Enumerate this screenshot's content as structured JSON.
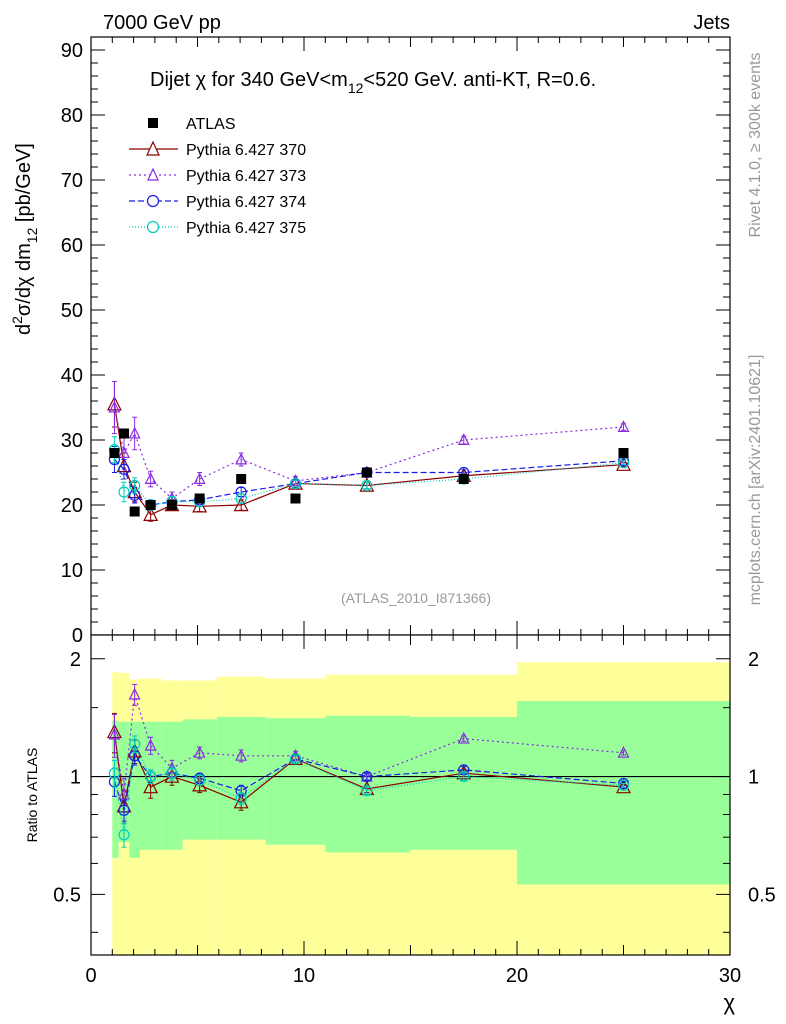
{
  "header": {
    "left_label": "7000 GeV pp",
    "right_label": "Jets",
    "side_label_top": "Rivet 4.1.0, ≥ 300k events",
    "side_label_bottom": "mcplots.cern.ch [arXiv:2401.10621]"
  },
  "colors": {
    "data": "#000000",
    "s370": "#8b0000",
    "s373": "#8a2be2",
    "s374": "#1a1ae6",
    "s375": "#00ccbb",
    "band_outer": "#ffff99",
    "band_inner": "#99ff99"
  },
  "chart_data": [
    {
      "type": "scatter",
      "panel": "main",
      "title": "Dijet χ for 340 GeV<m12<520 GeV.  anti-KT, R=0.6.",
      "title_parts": {
        "before": "Dijet χ for 340 GeV<m",
        "sub": "12",
        "after": "<520 GeV.  anti-KT, R=0.6."
      },
      "ylabel": "d²σ/dχ dm12 [pb/GeV]",
      "ylabel_parts": {
        "a": "d",
        "a_sup": "2",
        "b": "σ/dχ dm",
        "b_sub": "12",
        "c": " [pb/GeV]"
      },
      "watermark": "(ATLAS_2010_I871366)",
      "xlim": [
        0,
        30
      ],
      "ylim": [
        0,
        92
      ],
      "yticks": [
        0,
        10,
        20,
        30,
        40,
        50,
        60,
        70,
        80,
        90
      ],
      "legend_position": "top-left",
      "series": [
        {
          "name": "ATLAS",
          "key": "data",
          "style": "marker",
          "x": [
            1.1,
            1.55,
            2.05,
            2.8,
            3.8,
            5.1,
            7.05,
            9.6,
            12.95,
            17.5,
            25
          ],
          "y": [
            28,
            31,
            19,
            20,
            20,
            21,
            24,
            21,
            25,
            24,
            28
          ]
        },
        {
          "name": "Pythia 6.427 370",
          "key": "s370",
          "marker": "triangle",
          "dash": "",
          "x": [
            1.1,
            1.55,
            2.05,
            2.8,
            3.8,
            5.1,
            7.05,
            9.6,
            12.95,
            17.5,
            25
          ],
          "y": [
            35.5,
            26,
            22,
            18.5,
            20,
            19.8,
            20,
            23.3,
            23,
            24.5,
            26.2
          ],
          "err": [
            3.5,
            2,
            1.5,
            1,
            0.8,
            0.8,
            0.8,
            0.6,
            0.5,
            0.4,
            0.3
          ]
        },
        {
          "name": "Pythia 6.427 373",
          "key": "s373",
          "marker": "triangle",
          "dash": "2,3",
          "x": [
            1.1,
            1.55,
            2.05,
            2.8,
            3.8,
            5.1,
            7.05,
            9.6,
            12.95,
            17.5,
            25
          ],
          "y": [
            35,
            28,
            31,
            24,
            21,
            24,
            27,
            23.7,
            25,
            30,
            32
          ],
          "err": [
            4,
            2.5,
            2.5,
            1.2,
            1,
            1,
            1,
            0.7,
            0.6,
            0.6,
            0.5
          ]
        },
        {
          "name": "Pythia 6.427 374",
          "key": "s374",
          "marker": "circle",
          "dash": "6,3",
          "x": [
            1.1,
            1.55,
            2.05,
            2.8,
            3.8,
            5.1,
            7.05,
            9.6,
            12.95,
            17.5,
            25
          ],
          "y": [
            27,
            25.5,
            21.5,
            20,
            20.5,
            20.8,
            22,
            23.3,
            25,
            25,
            26.8
          ],
          "err": [
            2,
            1.5,
            1.2,
            0.8,
            0.8,
            0.7,
            0.7,
            0.5,
            0.5,
            0.4,
            0.3
          ]
        },
        {
          "name": "Pythia 6.427 375",
          "key": "s375",
          "marker": "circle",
          "dash": "1,2",
          "x": [
            1.1,
            1.55,
            2.05,
            2.8,
            3.8,
            5.1,
            7.05,
            9.6,
            12.95,
            17.5,
            25
          ],
          "y": [
            28.5,
            22,
            23,
            20,
            20.5,
            20.5,
            21,
            23.3,
            23,
            24,
            26.5
          ],
          "err": [
            2,
            1.5,
            1.2,
            0.8,
            0.8,
            0.7,
            0.7,
            0.5,
            0.5,
            0.4,
            0.3
          ]
        }
      ]
    },
    {
      "type": "scatter",
      "panel": "ratio",
      "ylabel": "Ratio to ATLAS",
      "xlabel": "χ",
      "xlim": [
        0,
        30
      ],
      "ylim": [
        0.35,
        2.3
      ],
      "xticks": [
        0,
        10,
        20,
        30
      ],
      "yticks": [
        0.5,
        1,
        2
      ],
      "reference_line": 1,
      "bands": [
        {
          "x0": 1,
          "x1": 1.3,
          "outer": [
            0.35,
            1.85
          ],
          "inner": [
            0.62,
            1.39
          ]
        },
        {
          "x0": 1.3,
          "x1": 1.8,
          "outer": [
            0.35,
            1.84
          ],
          "inner": [
            0.68,
            1.38
          ]
        },
        {
          "x0": 1.8,
          "x1": 2.3,
          "outer": [
            0.35,
            1.77
          ],
          "inner": [
            0.62,
            1.38
          ]
        },
        {
          "x0": 2.3,
          "x1": 3.3,
          "outer": [
            0.35,
            1.78
          ],
          "inner": [
            0.65,
            1.38
          ]
        },
        {
          "x0": 3.3,
          "x1": 4.3,
          "outer": [
            0.35,
            1.76
          ],
          "inner": [
            0.65,
            1.38
          ]
        },
        {
          "x0": 4.3,
          "x1": 5.9,
          "outer": [
            0.35,
            1.76
          ],
          "inner": [
            0.69,
            1.4
          ]
        },
        {
          "x0": 5.9,
          "x1": 8.2,
          "outer": [
            0.35,
            1.8
          ],
          "inner": [
            0.69,
            1.42
          ]
        },
        {
          "x0": 8.2,
          "x1": 11,
          "outer": [
            0.35,
            1.78
          ],
          "inner": [
            0.67,
            1.41
          ]
        },
        {
          "x0": 11,
          "x1": 15,
          "outer": [
            0.35,
            1.82
          ],
          "inner": [
            0.64,
            1.43
          ]
        },
        {
          "x0": 15,
          "x1": 20,
          "outer": [
            0.35,
            1.82
          ],
          "inner": [
            0.65,
            1.42
          ]
        },
        {
          "x0": 20,
          "x1": 30,
          "outer": [
            0.35,
            1.96
          ],
          "inner": [
            0.53,
            1.56
          ]
        }
      ],
      "series": [
        {
          "key": "s370",
          "marker": "triangle",
          "dash": "",
          "x": [
            1.1,
            1.55,
            2.05,
            2.8,
            3.8,
            5.1,
            7.05,
            9.6,
            12.95,
            17.5,
            25
          ],
          "y": [
            1.3,
            0.84,
            1.16,
            0.94,
            1.0,
            0.95,
            0.86,
            1.11,
            0.93,
            1.02,
            0.94
          ],
          "err": [
            0.15,
            0.08,
            0.08,
            0.06,
            0.05,
            0.04,
            0.04,
            0.03,
            0.02,
            0.02,
            0.015
          ]
        },
        {
          "key": "s373",
          "marker": "triangle",
          "dash": "2,3",
          "x": [
            1.1,
            1.55,
            2.05,
            2.8,
            3.8,
            5.1,
            7.05,
            9.6,
            12.95,
            17.5,
            25
          ],
          "y": [
            1.28,
            0.9,
            1.62,
            1.2,
            1.05,
            1.15,
            1.13,
            1.13,
            1.0,
            1.25,
            1.15
          ],
          "err": [
            0.16,
            0.09,
            0.1,
            0.06,
            0.05,
            0.04,
            0.04,
            0.03,
            0.02,
            0.02,
            0.015
          ]
        },
        {
          "key": "s374",
          "marker": "circle",
          "dash": "6,3",
          "x": [
            1.1,
            1.55,
            2.05,
            2.8,
            3.8,
            5.1,
            7.05,
            9.6,
            12.95,
            17.5,
            25
          ],
          "y": [
            0.97,
            0.82,
            1.13,
            1.0,
            1.02,
            0.99,
            0.92,
            1.11,
            1.0,
            1.04,
            0.96
          ],
          "err": [
            0.08,
            0.05,
            0.06,
            0.04,
            0.04,
            0.03,
            0.03,
            0.02,
            0.02,
            0.02,
            0.01
          ]
        },
        {
          "key": "s375",
          "marker": "circle",
          "dash": "1,2",
          "x": [
            1.1,
            1.55,
            2.05,
            2.8,
            3.8,
            5.1,
            7.05,
            9.6,
            12.95,
            17.5,
            25
          ],
          "y": [
            1.02,
            0.71,
            1.21,
            1.0,
            1.02,
            0.98,
            0.88,
            1.11,
            0.92,
            1.0,
            0.95
          ],
          "err": [
            0.08,
            0.05,
            0.06,
            0.04,
            0.04,
            0.03,
            0.03,
            0.02,
            0.02,
            0.02,
            0.01
          ]
        }
      ]
    }
  ]
}
